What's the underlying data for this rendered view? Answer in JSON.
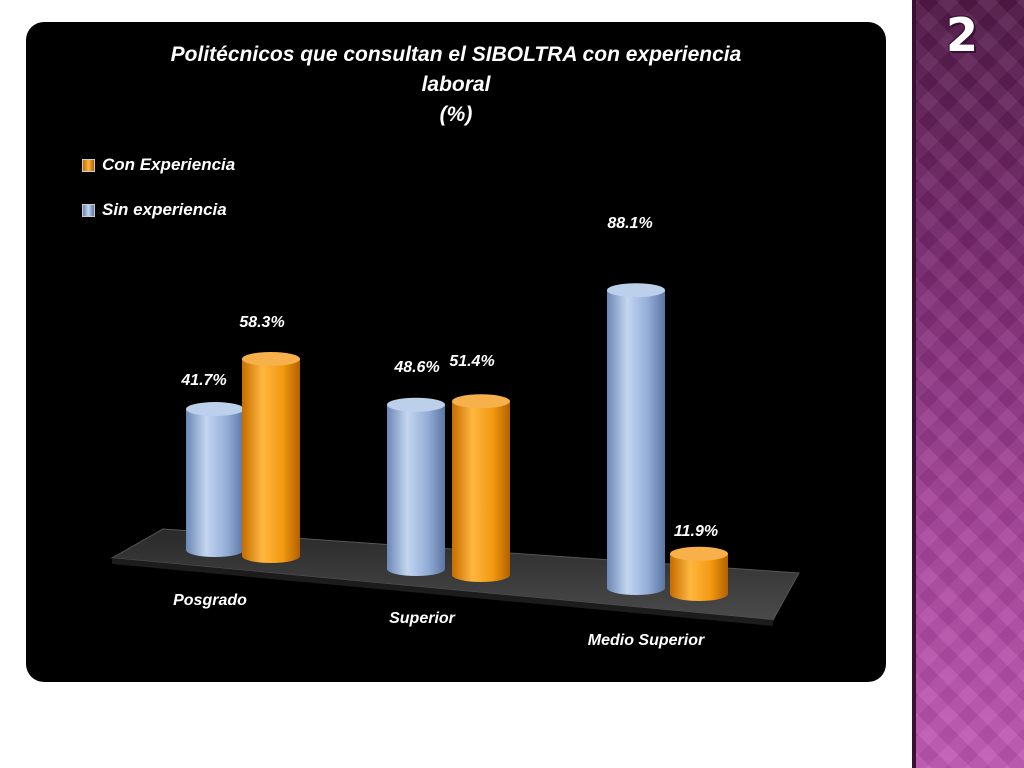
{
  "slide": {
    "number": "2"
  },
  "colors": {
    "sin_experiencia": "#9db7de",
    "con_experiencia": "#f29a10",
    "background": "#000000",
    "floor": "#3d3d3d",
    "side_band": "#8e3582"
  },
  "chart_data": {
    "type": "bar",
    "title": [
      "Politécnicos que consultan el SIBOLTRA con experiencia",
      "laboral",
      "(%)"
    ],
    "categories": [
      "Posgrado",
      "Superior",
      "Medio Superior"
    ],
    "series": [
      {
        "name": "Sin experiencia",
        "values": [
          41.7,
          48.6,
          88.1
        ],
        "labels": [
          "41.7%",
          "48.6%",
          "88.1%"
        ]
      },
      {
        "name": "Con Experiencia",
        "values": [
          58.3,
          51.4,
          11.9
        ],
        "labels": [
          "58.3%",
          "51.4%",
          "11.9%"
        ]
      }
    ],
    "legend": {
      "placement": "top-left",
      "entries": [
        "Con Experiencia",
        "Sin experiencia"
      ]
    },
    "ylim": [
      0,
      100
    ],
    "grid": false,
    "style": "3d-cylinder"
  }
}
